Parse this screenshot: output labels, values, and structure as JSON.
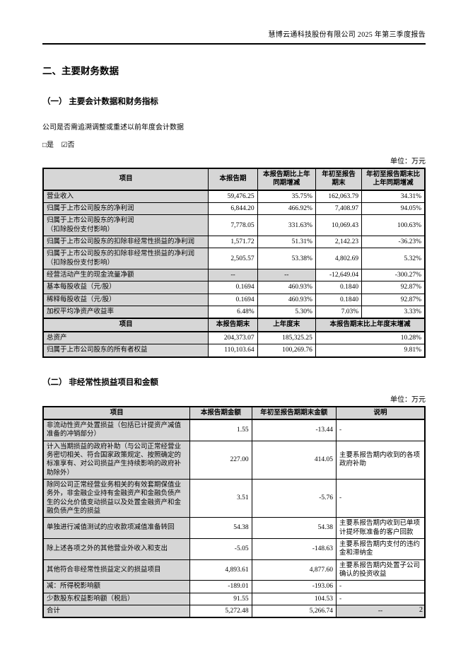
{
  "page": {
    "header_title": "慧博云通科技股份有限公司 2025 年第三季度报告",
    "page_number": "2"
  },
  "colors": {
    "table_shading": "#d6d6d6",
    "border": "#000000"
  },
  "sections": {
    "main_title": "二、主要财务数据",
    "sub1_title": "（一） 主要会计数据和财务指标",
    "restate_question": "公司是否需追溯调整或重述以前年度会计数据",
    "option_yes": "□是",
    "option_no": "☑否",
    "sub2_title": "（二） 非经常性损益项目和金额"
  },
  "table1": {
    "unit": "单位：万元",
    "headers": [
      "项目",
      "本报告期",
      "本报告期比上年同期增减",
      "年初至报告期末",
      "年初至报告期末比上年同期增减"
    ],
    "rows": [
      {
        "label": "营业收入",
        "values": [
          "59,476.25",
          "35.75%",
          "162,063.79",
          "34.31%"
        ]
      },
      {
        "label": "归属于上市公司股东的净利润",
        "values": [
          "6,844.20",
          "466.92%",
          "7,408.97",
          "94.05%"
        ]
      },
      {
        "label": "归属于上市公司股东的净利润\n（扣除股份支付影响）",
        "values": [
          "7,778.05",
          "331.63%",
          "10,069.43",
          "100.63%"
        ]
      },
      {
        "label": "归属于上市公司股东的扣除非经常性损益的净利润",
        "values": [
          "1,571.72",
          "51.31%",
          "2,142.23",
          "-36.23%"
        ]
      },
      {
        "label": "归属于上市公司股东的扣除非经常性损益的净利润\n（扣除股份支付影响）",
        "values": [
          "2,505.57",
          "53.38%",
          "4,802.69",
          "5.32%"
        ]
      },
      {
        "label": "经营活动产生的现金流量净额",
        "values": [
          "--",
          "--",
          "-12,649.04",
          "-300.27%"
        ],
        "gray_cols": [
          0,
          1
        ]
      },
      {
        "label": "基本每股收益（元/股）",
        "values": [
          "0.1694",
          "460.93%",
          "0.1840",
          "92.87%"
        ]
      },
      {
        "label": "稀释每股收益（元/股）",
        "values": [
          "0.1694",
          "460.93%",
          "0.1840",
          "92.87%"
        ]
      },
      {
        "label": "加权平均净资产收益率",
        "values": [
          "6.48%",
          "5.30%",
          "7.03%",
          "3.33%"
        ]
      }
    ],
    "sub_headers": [
      "项目",
      "本报告期末",
      "上年度末",
      "本报告期末比上年度末增减"
    ],
    "sub_rows": [
      {
        "label": "总资产",
        "values": [
          "204,373.07",
          "185,325.25",
          "10.28%"
        ]
      },
      {
        "label": "归属于上市公司股东的所有者权益",
        "values": [
          "110,103.64",
          "100,269.76",
          "9.81%"
        ]
      }
    ]
  },
  "table2": {
    "unit": "单位：万元",
    "headers": [
      "项目",
      "本报告期金额",
      "年初至报告期期末金额",
      "说明"
    ],
    "rows": [
      {
        "label": "非流动性资产处置损益（包括已计提资产减值准备的冲销部分）",
        "current": "1.55",
        "ytd": "-13.44",
        "note": "-"
      },
      {
        "label": "计入当期损益的政府补助（与公司正常经营业务密切相关、符合国家政策规定、按照确定的标准享有、对公司损益产生持续影响的政府补助除外）",
        "current": "227.00",
        "ytd": "414.05",
        "note": "主要系报告期内收到的各项政府补助"
      },
      {
        "label": "除同公司正常经营业务相关的有效套期保值业务外，非金融企业持有金融资产和金融负债产生的公允价值变动损益以及处置金融资产和金融负债产生的损益",
        "current": "3.51",
        "ytd": "-5.76",
        "note": "-"
      },
      {
        "label": "单独进行减值测试的应收款项减值准备转回",
        "current": "54.38",
        "ytd": "54.38",
        "note": "主要系报告期内收到已单项计提坏账准备的客户回款"
      },
      {
        "label": "除上述各项之外的其他营业外收入和支出",
        "current": "-5.05",
        "ytd": "-148.63",
        "note": "主要系报告期内支付的违约金和滞纳金"
      },
      {
        "label": "其他符合非经常性损益定义的损益项目",
        "current": "4,893.61",
        "ytd": "4,877.60",
        "note": "主要系报告期内处置子公司确认的投资收益"
      },
      {
        "label": "减：所得税影响额",
        "current": "-189.01",
        "ytd": "-193.06",
        "note": "-"
      },
      {
        "label": "少数股东权益影响额（税后）",
        "current": "91.55",
        "ytd": "104.53",
        "note": "-",
        "indent": true
      },
      {
        "label": "合计",
        "current": "5,272.48",
        "ytd": "5,266.74",
        "note": "--",
        "total": true
      }
    ]
  }
}
